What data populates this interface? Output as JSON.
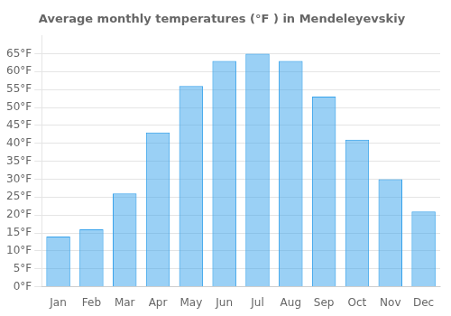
{
  "chart_data": {
    "type": "bar",
    "title": "Average monthly temperatures (°F ) in Mendeleyevskiy",
    "categories": [
      "Jan",
      "Feb",
      "Mar",
      "Apr",
      "May",
      "Jun",
      "Jul",
      "Aug",
      "Sep",
      "Oct",
      "Nov",
      "Dec"
    ],
    "values": [
      14,
      16,
      26,
      43,
      56,
      63,
      65,
      63,
      53,
      41,
      30,
      21
    ],
    "ylim": [
      0,
      70
    ],
    "yticks": [
      {
        "value": 0,
        "label": "0°F"
      },
      {
        "value": 5,
        "label": "5°F"
      },
      {
        "value": 10,
        "label": "10°F"
      },
      {
        "value": 15,
        "label": "15°F"
      },
      {
        "value": 20,
        "label": "20°F"
      },
      {
        "value": 25,
        "label": "25°F"
      },
      {
        "value": 30,
        "label": "30°F"
      },
      {
        "value": 35,
        "label": "35°F"
      },
      {
        "value": 40,
        "label": "40°F"
      },
      {
        "value": 45,
        "label": "45°F"
      },
      {
        "value": 50,
        "label": "50°F"
      },
      {
        "value": 55,
        "label": "55°F"
      },
      {
        "value": 60,
        "label": "60°F"
      },
      {
        "value": 65,
        "label": "65°F"
      }
    ],
    "grid": true
  }
}
